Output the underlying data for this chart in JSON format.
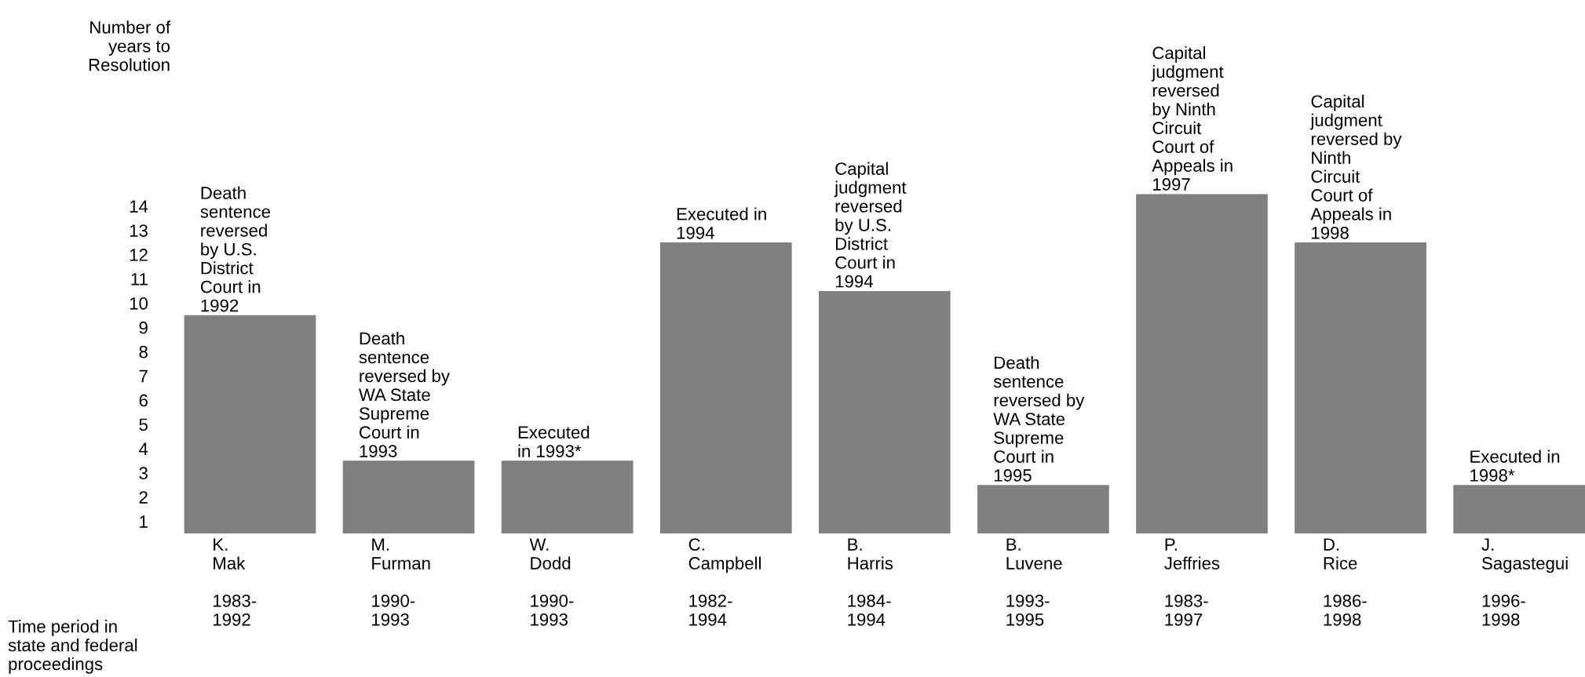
{
  "chart_data": {
    "type": "bar",
    "categories": [
      "K.\nMak\n\n1983-\n1992",
      "M.\nFurman\n\n1990-\n1993",
      "W.\nDodd\n\n1990-\n1993",
      "C.\nCampbell\n\n1982-\n1994",
      "B.\nHarris\n\n1984-\n1994",
      "B.\nLuvene\n\n1993-\n1995",
      "P.\nJeffries\n\n1983-\n1997",
      "D.\nRice\n\n1986-\n1998",
      "J.\nSagastegui\n\n1996-\n1998"
    ],
    "values": [
      9,
      3,
      3,
      12,
      10,
      2,
      14,
      12,
      2
    ],
    "ylim": [
      0,
      14
    ],
    "color": "#808080",
    "yticks": [
      {
        "value": 0.5,
        "label": "1"
      },
      {
        "value": 1.5,
        "label": "2"
      },
      {
        "value": 2.5,
        "label": "3"
      },
      {
        "value": 3.5,
        "label": "4"
      },
      {
        "value": 4.5,
        "label": "5"
      },
      {
        "value": 5.5,
        "label": "6"
      },
      {
        "value": 6.5,
        "label": "7"
      },
      {
        "value": 7.5,
        "label": "8"
      },
      {
        "value": 8.5,
        "label": "9"
      },
      {
        "value": 9.5,
        "label": "10"
      },
      {
        "value": 10.5,
        "label": "11"
      },
      {
        "value": 11.5,
        "label": "12"
      },
      {
        "value": 12.5,
        "label": "13"
      },
      {
        "value": 13.5,
        "label": "14"
      }
    ],
    "annotations": [
      "Number of\nyears to\nResolution",
      "Time period in\nstate and federal\nproceedings",
      {
        "text": "Death\nsentence\nreversed\nby U.S.\nDistrict\nCourt in\n1992",
        "x": "K.\nMak\n\n1983-\n1992",
        "y": 9
      },
      {
        "text": "Death\nsentence\nreversed by\nWA State\nSupreme\nCourt in\n1993",
        "x": "M.\nFurman\n\n1990-\n1993",
        "y": 3
      },
      {
        "text": "Executed\nin 1993*",
        "x": "W.\nDodd\n\n1990-\n1993",
        "y": 3
      },
      {
        "text": "Executed in\n1994",
        "x": "C.\nCampbell\n\n1982-\n1994",
        "y": 12
      },
      {
        "text": "Capital\njudgment\nreversed\nby U.S.\nDistrict\nCourt in\n1994",
        "x": "B.\nHarris\n\n1984-\n1994",
        "y": 10
      },
      {
        "text": "Death\nsentence\nreversed by\nWA State\nSupreme\nCourt in\n1995",
        "x": "B.\nLuvene\n\n1993-\n1995",
        "y": 2
      },
      {
        "text": "Capital\njudgment\nreversed\nby Ninth\nCircuit\nCourt of\nAppeals in\n1997",
        "x": "P.\nJeffries\n\n1983-\n1997",
        "y": 14
      },
      {
        "text": "Capital\njudgment\nreversed by\nNinth\nCircuit\nCourt of\nAppeals in\n1998",
        "x": "D.\nRice\n\n1986-\n1998",
        "y": 12
      },
      {
        "text": "Executed in\n1998*",
        "x": "J.\nSagastegui\n\n1996-\n1998",
        "y": 2
      }
    ]
  }
}
